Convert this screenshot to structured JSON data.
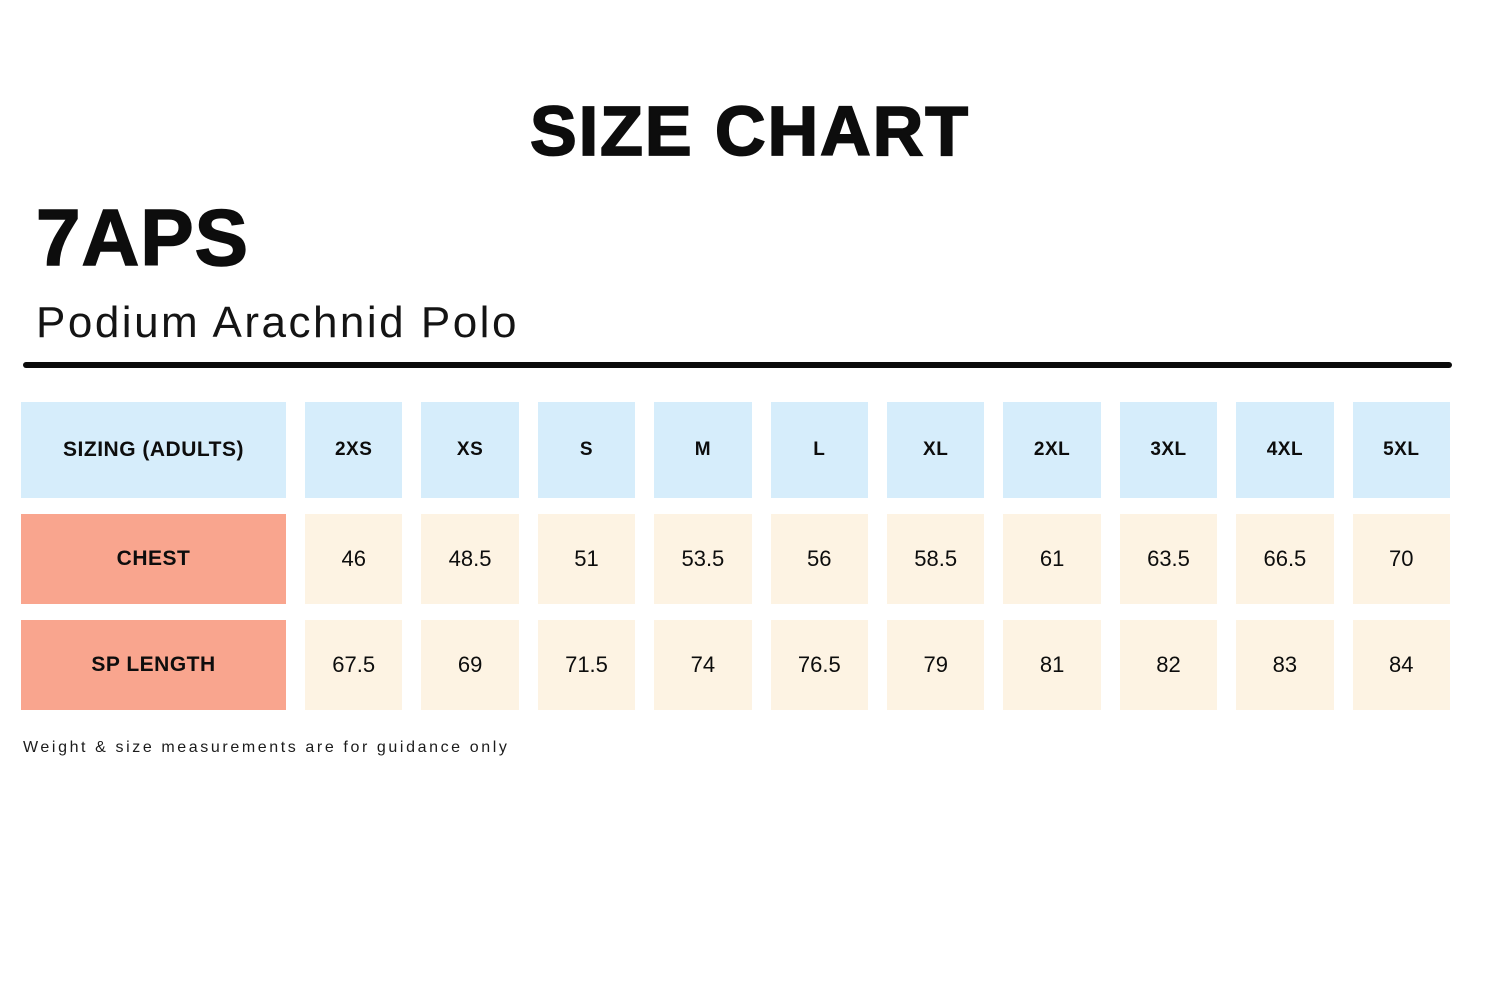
{
  "page": {
    "title": "SIZE CHART",
    "brand": "7APS",
    "product": "Podium Arachnid Polo",
    "footnote": "Weight & size measurements are for guidance only"
  },
  "colors": {
    "header_cell_bg": "#d6edfb",
    "row_label_bg": "#f9a58e",
    "value_cell_bg": "#fdf3e3",
    "divider": "#0b0b0b",
    "text": "#0d0d0d"
  },
  "chart_data": {
    "type": "table",
    "title": "SIZE CHART",
    "columns": [
      "SIZING (ADULTS)",
      "2XS",
      "XS",
      "S",
      "M",
      "L",
      "XL",
      "2XL",
      "3XL",
      "4XL",
      "5XL"
    ],
    "rows": [
      {
        "label": "CHEST",
        "values": [
          "46",
          "48.5",
          "51",
          "53.5",
          "56",
          "58.5",
          "61",
          "63.5",
          "66.5",
          "70"
        ]
      },
      {
        "label": "SP LENGTH",
        "values": [
          "67.5",
          "69",
          "71.5",
          "74",
          "76.5",
          "79",
          "81",
          "82",
          "83",
          "84"
        ]
      }
    ]
  }
}
